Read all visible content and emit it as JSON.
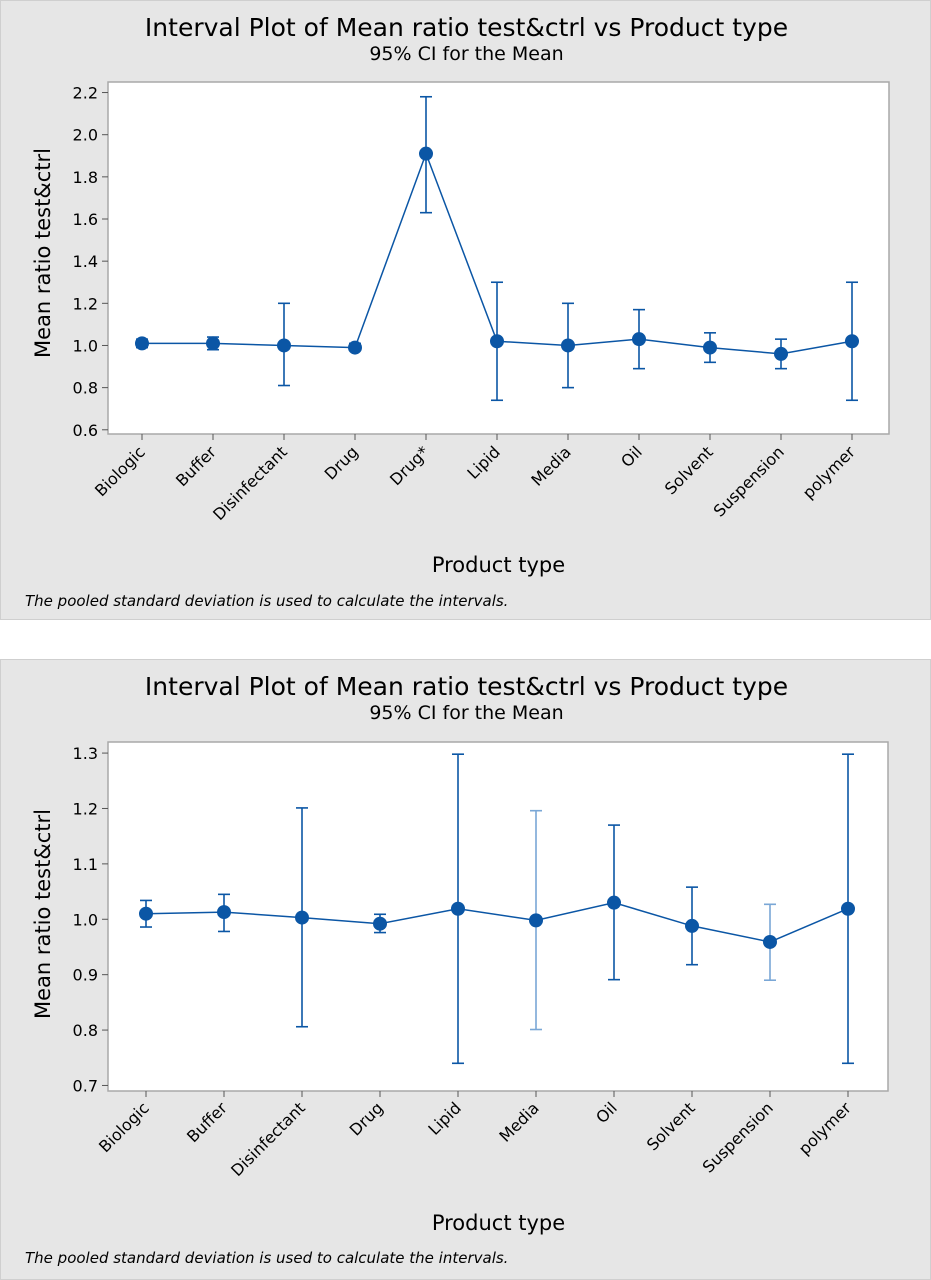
{
  "chart_data": [
    {
      "type": "interval",
      "title": "Interval Plot of Mean ratio test&ctrl vs Product type",
      "subtitle": "95% CI for the Mean",
      "xlabel": "Product type",
      "ylabel": "Mean ratio test&ctrl",
      "footnote": "The pooled standard deviation is used to calculate the intervals.",
      "ylim": [
        0.58,
        2.25
      ],
      "yticks": [
        "0.6",
        "0.8",
        "1.0",
        "1.2",
        "1.4",
        "1.6",
        "1.8",
        "2.0",
        "2.2"
      ],
      "categories": [
        "Biologic",
        "Buffer",
        "Disinfectant",
        "Drug",
        "Drug*",
        "Lipid",
        "Media",
        "Oil",
        "Solvent",
        "Suspension",
        "polymer"
      ],
      "means": [
        1.01,
        1.01,
        1.0,
        0.99,
        1.91,
        1.02,
        1.0,
        1.03,
        0.99,
        0.96,
        1.02
      ],
      "ci_lower": [
        0.99,
        0.98,
        0.81,
        0.98,
        1.63,
        0.74,
        0.8,
        0.89,
        0.92,
        0.89,
        0.74
      ],
      "ci_upper": [
        1.03,
        1.04,
        1.2,
        1.01,
        2.18,
        1.3,
        1.2,
        1.17,
        1.06,
        1.03,
        1.3
      ],
      "grid": false,
      "color": "#0b56a5"
    },
    {
      "type": "interval",
      "title": "Interval Plot of Mean ratio test&ctrl vs Product type",
      "subtitle": "95% CI for the Mean",
      "xlabel": "Product type",
      "ylabel": "Mean ratio test&ctrl",
      "footnote": "The pooled standard deviation is used to calculate the intervals.",
      "ylim": [
        0.69,
        1.32
      ],
      "yticks": [
        "0.7",
        "0.8",
        "0.9",
        "1.0",
        "1.1",
        "1.2",
        "1.3"
      ],
      "categories": [
        "Biologic",
        "Buffer",
        "Disinfectant",
        "Drug",
        "Lipid",
        "Media",
        "Oil",
        "Solvent",
        "Suspension",
        "polymer"
      ],
      "means": [
        1.01,
        1.013,
        1.003,
        0.992,
        1.019,
        0.998,
        1.03,
        0.988,
        0.959,
        1.019
      ],
      "ci_lower": [
        0.986,
        0.978,
        0.806,
        0.976,
        0.74,
        0.801,
        0.891,
        0.918,
        0.89,
        0.74
      ],
      "ci_upper": [
        1.034,
        1.045,
        1.201,
        1.009,
        1.298,
        1.196,
        1.17,
        1.058,
        1.027,
        1.298
      ],
      "grid": false,
      "color": "#0b56a5",
      "light_color": "#7aa7d6"
    }
  ]
}
